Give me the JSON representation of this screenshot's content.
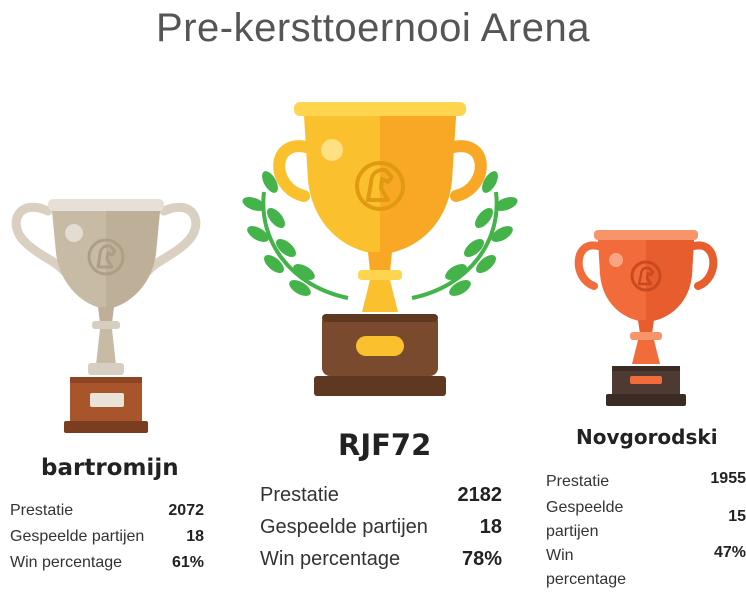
{
  "title": "Pre-kersttoernooi Arena",
  "colors": {
    "gold": "#FBC02D",
    "silver": "#C8BBA6",
    "bronze": "#F26B3A",
    "laurel": "#43B34A",
    "base_brown": "#7A4A2E"
  },
  "podium": [
    {
      "rank": 2,
      "trophy": "silver-trophy",
      "name": "bartromijn",
      "stats": [
        {
          "label": "Prestatie",
          "value": "2072"
        },
        {
          "label": "Gespeelde partijen",
          "value": "18"
        },
        {
          "label": "Win percentage",
          "value": "61%"
        }
      ]
    },
    {
      "rank": 1,
      "trophy": "gold-trophy",
      "name": "RJF72",
      "stats": [
        {
          "label": "Prestatie",
          "value": "2182"
        },
        {
          "label": "Gespeelde partijen",
          "value": "18"
        },
        {
          "label": "Win percentage",
          "value": "78%"
        }
      ]
    },
    {
      "rank": 3,
      "trophy": "bronze-trophy",
      "name": "Novgorodski",
      "stats": [
        {
          "label": "Prestatie",
          "value": "1955"
        },
        {
          "label": "Gespeelde partijen",
          "value": "15"
        },
        {
          "label": "Win percentage",
          "value": "47%"
        }
      ]
    }
  ]
}
